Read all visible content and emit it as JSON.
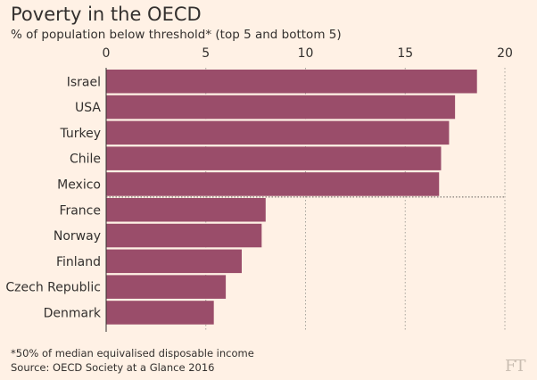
{
  "chart_data": {
    "type": "bar",
    "orientation": "horizontal",
    "title": "Poverty in the OECD",
    "subtitle": "% of population below threshold* (top 5 and bottom 5)",
    "categories": [
      "Israel",
      "USA",
      "Turkey",
      "Chile",
      "Mexico",
      "France",
      "Norway",
      "Finland",
      "Czech Republic",
      "Denmark"
    ],
    "values": [
      18.6,
      17.5,
      17.2,
      16.8,
      16.7,
      8.0,
      7.8,
      6.8,
      6.0,
      5.4
    ],
    "xlim": [
      0,
      20
    ],
    "xticks": [
      "0",
      "5",
      "10",
      "15",
      "20"
    ],
    "grid": "vertical dotted",
    "bar_color": "#9a4d6a",
    "separator_after_category": "Mexico",
    "footnote": "*50% of median equivalised disposable income",
    "source": "Source: OECD Society at a Glance 2016"
  },
  "logo_text": "FT",
  "background_color": "#fff1e5"
}
